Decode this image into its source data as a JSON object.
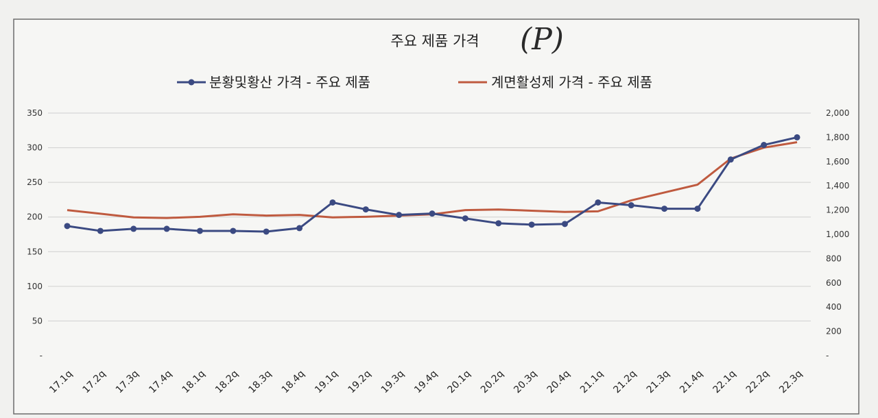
{
  "chart_data": {
    "type": "line",
    "title": "주요 제품 가격",
    "handwritten_note": "(P)",
    "categories": [
      "17.1q",
      "17.2q",
      "17.3q",
      "17.4q",
      "18.1q",
      "18.2q",
      "18.3q",
      "18.4q",
      "19.1q",
      "19.2q",
      "19.3q",
      "19.4q",
      "20.1q",
      "20.2q",
      "20.3q",
      "20.4q",
      "21.1q",
      "21.2q",
      "21.3q",
      "21.4q",
      "22.1q",
      "22.2q",
      "22.3q"
    ],
    "series": [
      {
        "name": "분황및황산 가격 - 주요 제품",
        "axis": "left",
        "color": "#3b4a82",
        "marker": "circle",
        "values": [
          187,
          180,
          183,
          183,
          180,
          180,
          179,
          184,
          221,
          211,
          203,
          205,
          198,
          191,
          189,
          190,
          221,
          217,
          212,
          212,
          283,
          304,
          315
        ]
      },
      {
        "name": "계면활성제 가격 - 주요 제품",
        "axis": "right",
        "color": "#bf5a3f",
        "marker": "none",
        "values": [
          1200,
          1170,
          1140,
          1135,
          1145,
          1165,
          1155,
          1160,
          1140,
          1145,
          1155,
          1165,
          1200,
          1205,
          1195,
          1185,
          1190,
          1280,
          1345,
          1410,
          1625,
          1715,
          1760
        ]
      }
    ],
    "y_left": {
      "min": 0,
      "max": 350,
      "ticks": [
        "-",
        "50",
        "100",
        "150",
        "200",
        "250",
        "300",
        "350"
      ]
    },
    "y_right": {
      "min": 0,
      "max": 2000,
      "ticks": [
        "-",
        "200",
        "400",
        "600",
        "800",
        "1,000",
        "1,200",
        "1,400",
        "1,600",
        "1,800",
        "2,000"
      ]
    },
    "grid": true,
    "legend_position": "top"
  }
}
